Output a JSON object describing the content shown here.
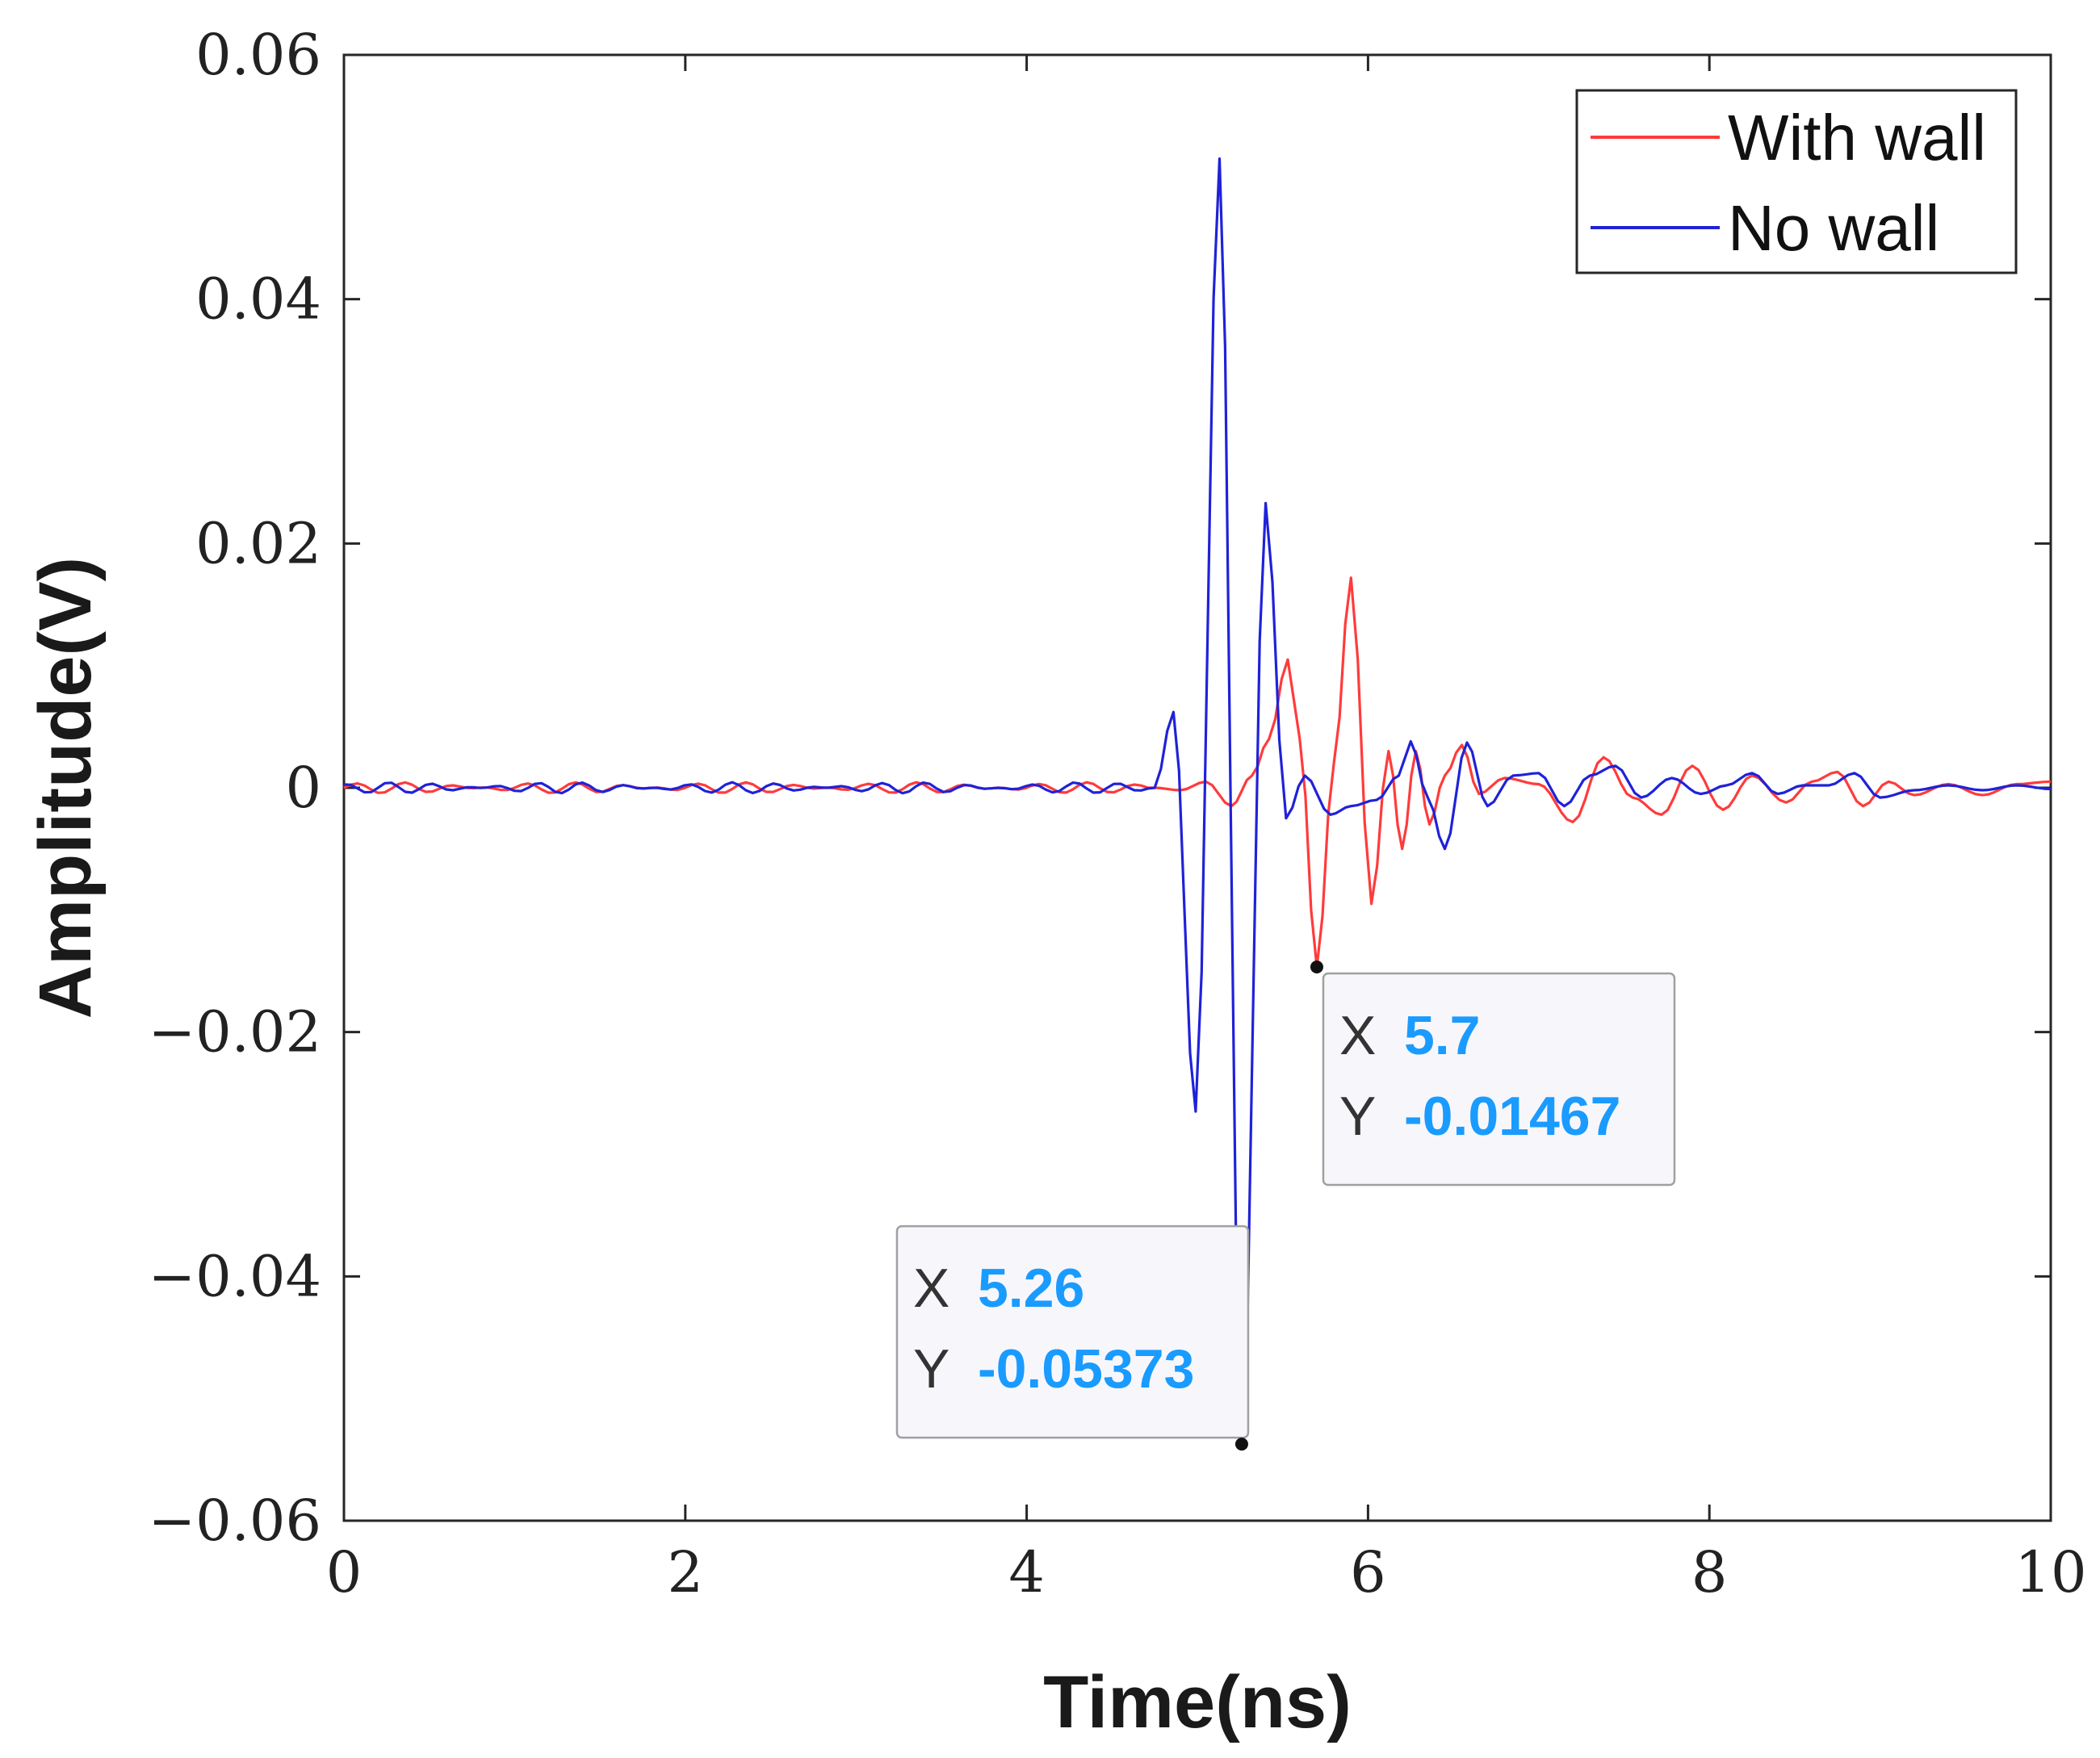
{
  "chart_data": {
    "type": "line",
    "xlabel": "Time(ns)",
    "ylabel": "Amplitude(V)",
    "xlim": [
      0,
      10
    ],
    "ylim": [
      -0.06,
      0.06
    ],
    "xticks": [
      0,
      2,
      4,
      6,
      8,
      10
    ],
    "xtick_labels": [
      "0",
      "2",
      "4",
      "6",
      "8",
      "10"
    ],
    "yticks": [
      0.06,
      0.04,
      0.02,
      0,
      -0.02,
      -0.04,
      -0.06
    ],
    "ytick_labels": [
      "0.06",
      "0.04",
      "0.02",
      "0",
      "−0.02",
      "−0.04",
      "−0.06"
    ],
    "grid": false,
    "legend_position": "top-right",
    "series": [
      {
        "name": "With wall",
        "color": "#ff3b3b",
        "x": [
          0,
          4.75,
          4.9,
          5.05,
          5.2,
          5.32,
          5.42,
          5.53,
          5.6,
          5.7,
          5.8,
          5.9,
          6.02,
          6.12,
          6.2,
          6.28,
          6.36,
          6.45,
          6.55,
          6.65,
          6.8,
          7.0,
          7.2,
          7.38,
          7.55,
          7.72,
          7.9,
          8.08,
          8.25,
          8.45,
          8.6,
          8.75,
          8.9,
          9.05,
          9.2,
          9.4,
          9.6,
          9.8,
          10
        ],
        "y": [
          0,
          0,
          -0.0002,
          0.0005,
          -0.0015,
          0.001,
          0.004,
          0.0105,
          0.004,
          -0.01467,
          0.002,
          0.0172,
          -0.0095,
          0.003,
          -0.005,
          0.003,
          -0.003,
          0.001,
          0.0035,
          -0.0005,
          0.0008,
          0.0003,
          -0.0028,
          0.0025,
          -0.0008,
          -0.0022,
          0.0018,
          -0.0018,
          0.001,
          -0.0012,
          0.0005,
          0.0013,
          -0.0015,
          0.0005,
          -0.0006,
          0.0003,
          -0.0006,
          0.0003,
          0.0005
        ]
      },
      {
        "name": "No wall",
        "color": "#1f22d8",
        "x": [
          0,
          4.75,
          4.86,
          4.99,
          5.13,
          5.26,
          5.4,
          5.52,
          5.63,
          5.78,
          5.9,
          6.05,
          6.18,
          6.25,
          6.35,
          6.45,
          6.58,
          6.7,
          6.85,
          7.0,
          7.15,
          7.3,
          7.45,
          7.6,
          7.78,
          7.95,
          8.1,
          8.25,
          8.4,
          8.55,
          8.7,
          8.85,
          9.0,
          9.2,
          9.4,
          9.6,
          9.8,
          10
        ],
        "y": [
          0,
          0,
          0.0062,
          -0.0265,
          0.0515,
          -0.05373,
          0.0233,
          -0.0025,
          0.001,
          -0.0022,
          -0.0015,
          -0.001,
          0.001,
          0.0038,
          -0.0008,
          -0.005,
          0.0037,
          -0.0015,
          0.001,
          0.0012,
          -0.0015,
          0.001,
          0.0018,
          -0.0008,
          0.0008,
          -0.0005,
          0.0002,
          0.0012,
          -0.0005,
          0.0002,
          0.0002,
          0.0012,
          -0.0008,
          -0.0002,
          0.0002,
          -0.0002,
          0.0002,
          -0.0001
        ]
      }
    ],
    "datatips": [
      {
        "x_key": "X",
        "x_value": "5.7",
        "y_key": "Y",
        "y_value": "-0.01467",
        "px": 5.7,
        "py": -0.01467,
        "box_side": "right"
      },
      {
        "x_key": "X",
        "x_value": "5.26",
        "y_key": "Y",
        "y_value": "-0.05373",
        "px": 5.26,
        "py": -0.05373,
        "box_side": "left"
      }
    ],
    "datatip_value_color": "#1a9bff"
  }
}
